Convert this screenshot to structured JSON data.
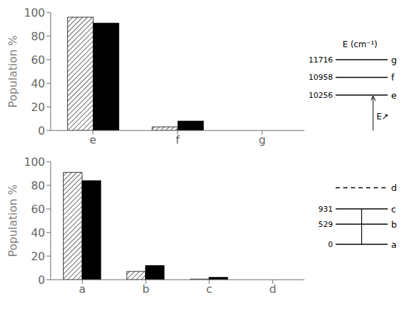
{
  "chart_data": [
    {
      "type": "bar",
      "categories": [
        "e",
        "f",
        "g"
      ],
      "series": [
        {
          "color": "#ffffff",
          "values": [
            96,
            3,
            0
          ]
        },
        {
          "color": "#000000",
          "values": [
            91,
            8,
            0
          ]
        }
      ],
      "ylabel": "Population %",
      "ylim": [
        0,
        100
      ],
      "yticks": [
        0,
        20,
        40,
        60,
        80,
        100
      ],
      "grid": false,
      "annotations": {
        "title": "E (cm⁻¹)",
        "arrow_label": "E↗",
        "levels": [
          {
            "label": "e",
            "energy": "10256"
          },
          {
            "label": "f",
            "energy": "10958"
          },
          {
            "label": "g",
            "energy": "11716"
          }
        ]
      }
    },
    {
      "type": "bar",
      "categories": [
        "a",
        "b",
        "c",
        "d"
      ],
      "series": [
        {
          "color": "#ffffff",
          "values": [
            91,
            7,
            0.5,
            0
          ]
        },
        {
          "color": "#000000",
          "values": [
            84,
            12,
            2,
            0
          ]
        }
      ],
      "ylabel": "Population %",
      "ylim": [
        0,
        100
      ],
      "yticks": [
        0,
        20,
        40,
        60,
        80,
        100
      ],
      "grid": false,
      "annotations": {
        "levels": [
          {
            "label": "a",
            "energy": "0"
          },
          {
            "label": "b",
            "energy": "529"
          },
          {
            "label": "c",
            "energy": "931"
          },
          {
            "label": "d",
            "line_style": "dashed"
          }
        ]
      }
    }
  ]
}
